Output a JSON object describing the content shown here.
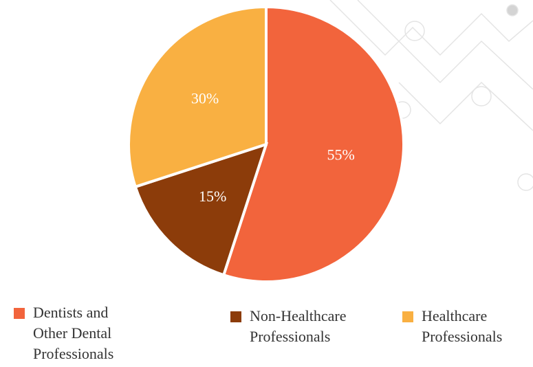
{
  "chart_data": {
    "type": "pie",
    "categories": [
      "Dentists and Other Dental Professionals",
      "Non-Healthcare Professionals",
      "Healthcare Professionals"
    ],
    "values": [
      55,
      15,
      30
    ],
    "value_labels": [
      "55%",
      "15%",
      "30%"
    ],
    "colors": [
      "#f2643c",
      "#8c3c0a",
      "#f9b042"
    ]
  }
}
